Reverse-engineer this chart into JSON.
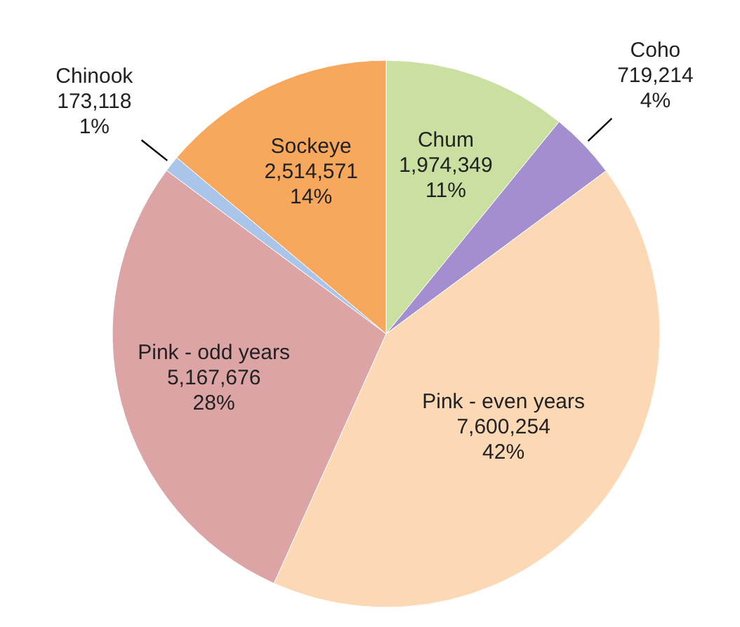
{
  "chart_data": {
    "type": "pie",
    "categories": [
      "Chum",
      "Coho",
      "Pink - even years",
      "Pink - odd years",
      "Chinook",
      "Sockeye"
    ],
    "values": [
      1974349,
      719214,
      7600254,
      5167676,
      173118,
      2514571
    ],
    "value_labels": [
      "1,974,349\n11%",
      "719,214\n4%",
      "7,600,254\n42%",
      "5,167,676\n28%",
      "173,118\n1%",
      "2,514,571\n14%"
    ],
    "colors": [
      "#c9e0a0",
      "#a38fd0",
      "#fcd8b4",
      "#dca4a4",
      "#a9c5ea",
      "#f8a85c"
    ]
  }
}
